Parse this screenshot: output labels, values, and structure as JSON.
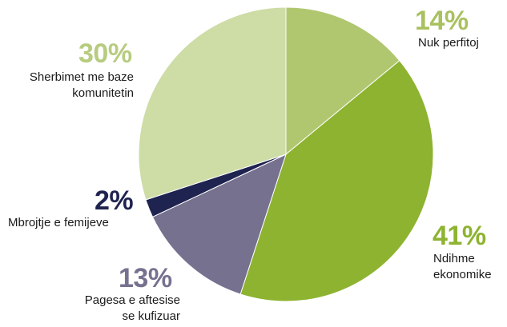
{
  "chart_data": {
    "type": "pie",
    "slices": [
      {
        "label": [
          "Nuk perfitoj"
        ],
        "percent_label": "14%",
        "value": 14,
        "color": "#b0c770",
        "text_color": "#a9c15f"
      },
      {
        "label": [
          "Ndihme",
          "ekonomike"
        ],
        "percent_label": "41%",
        "value": 41,
        "color": "#8db330",
        "text_color": "#8db330"
      },
      {
        "label": [
          "Pagesa e aftesise",
          "se kufizuar"
        ],
        "percent_label": "13%",
        "value": 13,
        "color": "#76718f",
        "text_color": "#76718f"
      },
      {
        "label": [
          "Mbrojtje e femijeve"
        ],
        "percent_label": "2%",
        "value": 2,
        "color": "#1f2350",
        "text_color": "#1f2350"
      },
      {
        "label": [
          "Sherbimet me baze",
          "komunitetin"
        ],
        "percent_label": "30%",
        "value": 30,
        "color": "#cedca6",
        "text_color": "#b7cc7f"
      }
    ]
  }
}
